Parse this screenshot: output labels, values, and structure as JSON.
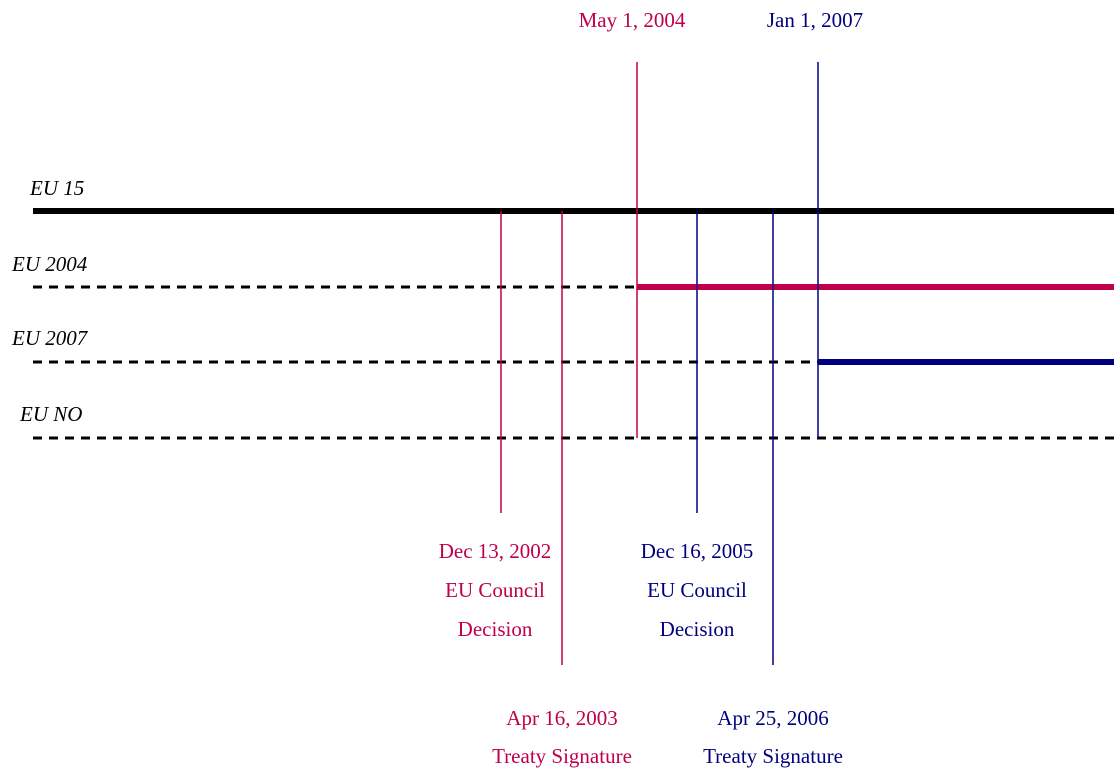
{
  "lanes": [
    {
      "label": "EU 15"
    },
    {
      "label": "EU 2004"
    },
    {
      "label": "EU 2007"
    },
    {
      "label": "EU NO"
    }
  ],
  "top_events": [
    {
      "date": "May 1, 2004"
    },
    {
      "date": "Jan 1, 2007"
    }
  ],
  "bottom_events": [
    {
      "date": "Dec 13, 2002",
      "description": [
        "EU Council",
        "Decision"
      ]
    },
    {
      "date": "Dec 16, 2005",
      "description": [
        "EU Council",
        "Decision"
      ]
    },
    {
      "date": "Apr 16, 2003",
      "description": [
        "Treaty Signature"
      ]
    },
    {
      "date": "Apr 25, 2006",
      "description": [
        "Treaty Signature"
      ]
    }
  ]
}
